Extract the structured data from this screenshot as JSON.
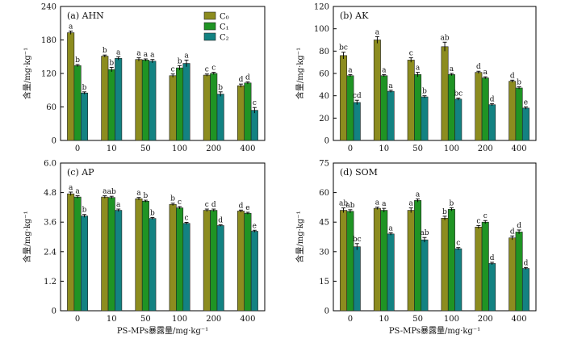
{
  "colors": {
    "C0": "#8c8c1f",
    "C1": "#1f9424",
    "C2": "#138282"
  },
  "chart_data": [
    {
      "type": "bar",
      "title": "(a) AHN",
      "ylabel": "含量/mg·kg⁻¹",
      "xlabel": "",
      "ylim": [
        0,
        240
      ],
      "yticks": [
        "0",
        "60",
        "120",
        "180",
        "240"
      ],
      "categories": [
        "0",
        "10",
        "50",
        "100",
        "200",
        "400"
      ],
      "legend": {
        "position": "top-right",
        "entries": [
          "C₀",
          "C₁",
          "C₂"
        ]
      },
      "series": [
        {
          "name": "C₀",
          "values": [
            193,
            151,
            145,
            116,
            117,
            98
          ],
          "errors": [
            3,
            2,
            3,
            3,
            2,
            3
          ],
          "labels": [
            "a",
            "b",
            "a",
            "c",
            "c",
            "d"
          ]
        },
        {
          "name": "C₁",
          "values": [
            134,
            127,
            144,
            130,
            120,
            103
          ],
          "errors": [
            2,
            4,
            2,
            4,
            2,
            2
          ],
          "labels": [
            "b",
            "b",
            "a",
            "b",
            "c",
            "d"
          ]
        },
        {
          "name": "C₂",
          "values": [
            85,
            147,
            142,
            138,
            83,
            54
          ],
          "errors": [
            2,
            3,
            3,
            6,
            4,
            5
          ],
          "labels": [
            "b",
            "a",
            "a",
            "a",
            "b",
            "c"
          ]
        }
      ]
    },
    {
      "type": "bar",
      "title": "(b) AK",
      "ylabel": "含量/mg·kg⁻¹",
      "xlabel": "",
      "ylim": [
        0,
        120
      ],
      "yticks": [
        "0",
        "20",
        "40",
        "60",
        "80",
        "100",
        "120"
      ],
      "categories": [
        "0",
        "10",
        "50",
        "100",
        "200",
        "400"
      ],
      "series": [
        {
          "name": "C₀",
          "values": [
            76,
            90,
            72,
            84,
            61,
            53
          ],
          "errors": [
            3,
            3,
            2,
            4,
            1,
            1
          ],
          "labels": [
            "bc",
            "a",
            "c",
            "ab",
            "d",
            "d"
          ]
        },
        {
          "name": "C₁",
          "values": [
            58,
            58,
            59,
            59,
            56,
            47
          ],
          "errors": [
            1,
            1,
            2,
            1,
            1,
            1
          ],
          "labels": [
            "a",
            "a",
            "a",
            "a",
            "a",
            "b"
          ]
        },
        {
          "name": "C₂",
          "values": [
            34,
            44,
            39,
            37,
            32,
            29
          ],
          "errors": [
            2,
            1,
            1,
            1,
            1,
            1
          ],
          "labels": [
            "cd",
            "a",
            "b",
            "bc",
            "d",
            "e"
          ]
        }
      ]
    },
    {
      "type": "bar",
      "title": "(c) AP",
      "ylabel": "含量/mg·kg⁻¹",
      "xlabel": "PS-MPs暴露量/mg·kg⁻¹",
      "ylim": [
        0,
        6.0
      ],
      "yticks": [
        "0",
        "1.2",
        "2.4",
        "3.6",
        "4.8",
        "6.0"
      ],
      "categories": [
        "0",
        "10",
        "50",
        "100",
        "200",
        "400"
      ],
      "series": [
        {
          "name": "C₀",
          "values": [
            4.75,
            4.62,
            4.55,
            4.32,
            4.08,
            4.05
          ],
          "errors": [
            0.07,
            0.05,
            0.05,
            0.05,
            0.05,
            0.04
          ],
          "labels": [
            "a",
            "a",
            "a",
            "b",
            "c",
            "d"
          ]
        },
        {
          "name": "C₁",
          "values": [
            4.62,
            4.6,
            4.45,
            4.18,
            4.08,
            3.96
          ],
          "errors": [
            0.05,
            0.05,
            0.04,
            0.05,
            0.05,
            0.04
          ],
          "labels": [
            "a",
            "ab",
            "b",
            "c",
            "d",
            "e"
          ]
        },
        {
          "name": "C₂",
          "values": [
            3.85,
            4.08,
            3.75,
            3.55,
            3.46,
            3.23
          ],
          "errors": [
            0.06,
            0.05,
            0.04,
            0.04,
            0.03,
            0.04
          ],
          "labels": [
            "b",
            "a",
            "b",
            "c",
            "d",
            "e"
          ]
        }
      ]
    },
    {
      "type": "bar",
      "title": "(d) SOM",
      "ylabel": "含量/mg·kg⁻¹",
      "xlabel": "PS-MPs暴露量/mg·kg⁻¹",
      "ylim": [
        0,
        75
      ],
      "yticks": [
        "0",
        "15",
        "30",
        "45",
        "60",
        "75"
      ],
      "categories": [
        "0",
        "10",
        "50",
        "100",
        "200",
        "400"
      ],
      "series": [
        {
          "name": "C₀",
          "values": [
            51,
            52,
            51,
            47,
            42.5,
            37
          ],
          "errors": [
            1.2,
            0.6,
            1.2,
            1.0,
            0.8,
            1.0
          ],
          "labels": [
            "ab",
            "a",
            "a",
            "b",
            "c",
            "d"
          ]
        },
        {
          "name": "C₁",
          "values": [
            50.5,
            51,
            56,
            51.5,
            45,
            40
          ],
          "errors": [
            0.8,
            1.0,
            0.8,
            0.8,
            0.8,
            1.0
          ],
          "labels": [
            "ab",
            "a",
            "a",
            "b",
            "c",
            "d"
          ]
        },
        {
          "name": "C₂",
          "values": [
            32.5,
            39,
            36,
            31.5,
            24,
            21.5
          ],
          "errors": [
            1.6,
            0.6,
            1.2,
            0.6,
            0.6,
            0.5
          ],
          "labels": [
            "bc",
            "a",
            "ab",
            "c",
            "d",
            "d"
          ]
        }
      ]
    }
  ]
}
